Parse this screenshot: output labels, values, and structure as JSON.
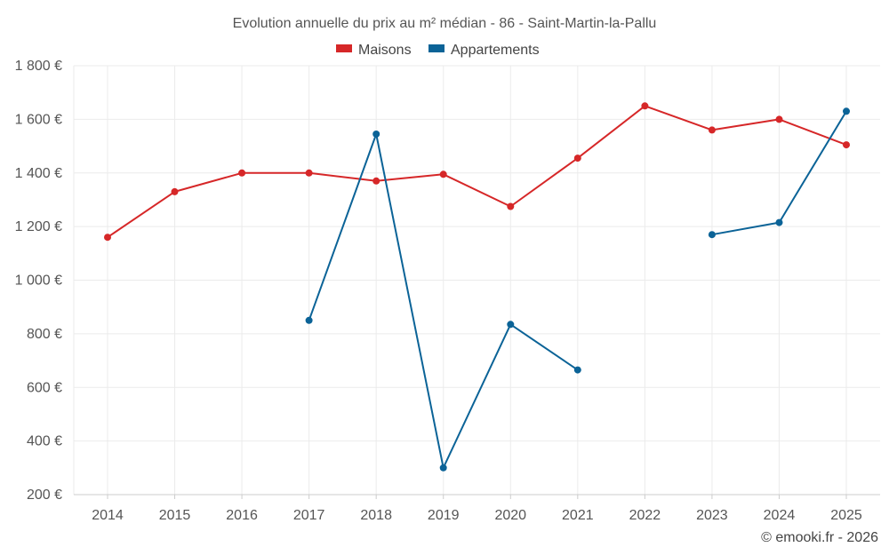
{
  "chart_data": {
    "type": "line",
    "title": "Evolution annuelle du prix au m² médian - 86 - Saint-Martin-la-Pallu",
    "xlabel": "",
    "ylabel": "",
    "x": [
      "2014",
      "2015",
      "2016",
      "2017",
      "2018",
      "2019",
      "2020",
      "2021",
      "2022",
      "2023",
      "2024",
      "2025"
    ],
    "ylim": [
      200,
      1800
    ],
    "yticks": [
      200,
      400,
      600,
      800,
      1000,
      1200,
      1400,
      1600,
      1800
    ],
    "ytick_labels": [
      "200 €",
      "400 €",
      "600 €",
      "800 €",
      "1 000 €",
      "1 200 €",
      "1 400 €",
      "1 600 €",
      "1 800 €"
    ],
    "grid": true,
    "legend_position": "top-center",
    "series": [
      {
        "name": "Maisons",
        "color": "#d62728",
        "values": [
          1160,
          1330,
          1400,
          1400,
          1370,
          1395,
          1275,
          1455,
          1650,
          1560,
          1600,
          1505
        ]
      },
      {
        "name": "Appartements",
        "color": "#0b6397",
        "values": [
          null,
          null,
          null,
          850,
          1545,
          300,
          835,
          665,
          null,
          1170,
          1215,
          1630
        ]
      }
    ],
    "credit": "© emooki.fr - 2026"
  }
}
